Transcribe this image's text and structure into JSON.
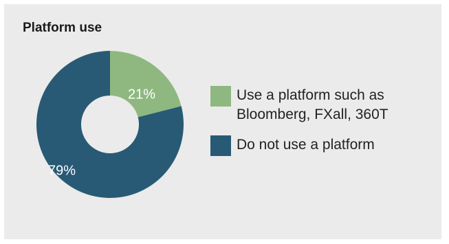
{
  "chart_data": {
    "type": "pie",
    "title": "Platform use",
    "donut": true,
    "slices": [
      {
        "name": "Use a platform such as Bloomberg, FXall, 360T",
        "value": 21,
        "label": "21%",
        "color": "#8fb880"
      },
      {
        "name": "Do not use a platform",
        "value": 79,
        "label": "79%",
        "color": "#285a75"
      }
    ],
    "legend_position": "right"
  },
  "panel_color": "#ebebeb"
}
